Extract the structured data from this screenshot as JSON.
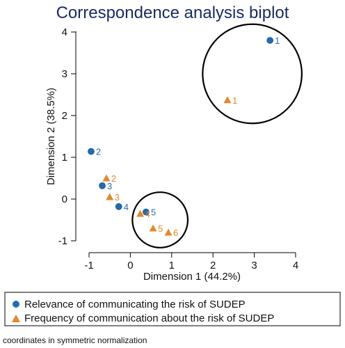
{
  "chart_data": {
    "type": "scatter",
    "title": "Correspondence analysis biplot",
    "xlabel": "Dimension 1 (44.2%)",
    "ylabel": "Dimension 2 (38.5%)",
    "xlim": [
      -1,
      4
    ],
    "ylim": [
      -1,
      4
    ],
    "xticks": [
      -1,
      0,
      1,
      2,
      3,
      4
    ],
    "yticks": [
      -1,
      0,
      1,
      2,
      3,
      4
    ],
    "grid": false,
    "legend_position": "bottom",
    "series": [
      {
        "name": "Relevance of communicating the risk of SUDEP",
        "marker": "circle",
        "color": "#1f6db3",
        "points": [
          {
            "label": "1",
            "x": 3.38,
            "y": 3.8
          },
          {
            "label": "2",
            "x": -0.95,
            "y": 1.14
          },
          {
            "label": "3",
            "x": -0.68,
            "y": 0.32
          },
          {
            "label": "4",
            "x": -0.28,
            "y": -0.18
          },
          {
            "label": "5",
            "x": 0.38,
            "y": -0.31
          }
        ]
      },
      {
        "name": "Frequency of communication about the risk of SUDEP",
        "marker": "triangle",
        "color": "#e08a2e",
        "points": [
          {
            "label": "1",
            "x": 2.35,
            "y": 2.37
          },
          {
            "label": "2",
            "x": -0.58,
            "y": 0.5
          },
          {
            "label": "3",
            "x": -0.5,
            "y": 0.05
          },
          {
            "label": "4",
            "x": 0.24,
            "y": -0.35
          },
          {
            "label": "5",
            "x": 0.55,
            "y": -0.7
          },
          {
            "label": "6",
            "x": 0.92,
            "y": -0.8
          }
        ]
      }
    ],
    "annotations": [
      {
        "shape": "circle",
        "center": [
          2.95,
          3.0
        ],
        "radius_x": 1.2
      },
      {
        "shape": "circle",
        "center": [
          0.72,
          -0.5
        ],
        "radius_x": 0.67
      }
    ],
    "note": "coordinates in symmetric normalization"
  }
}
